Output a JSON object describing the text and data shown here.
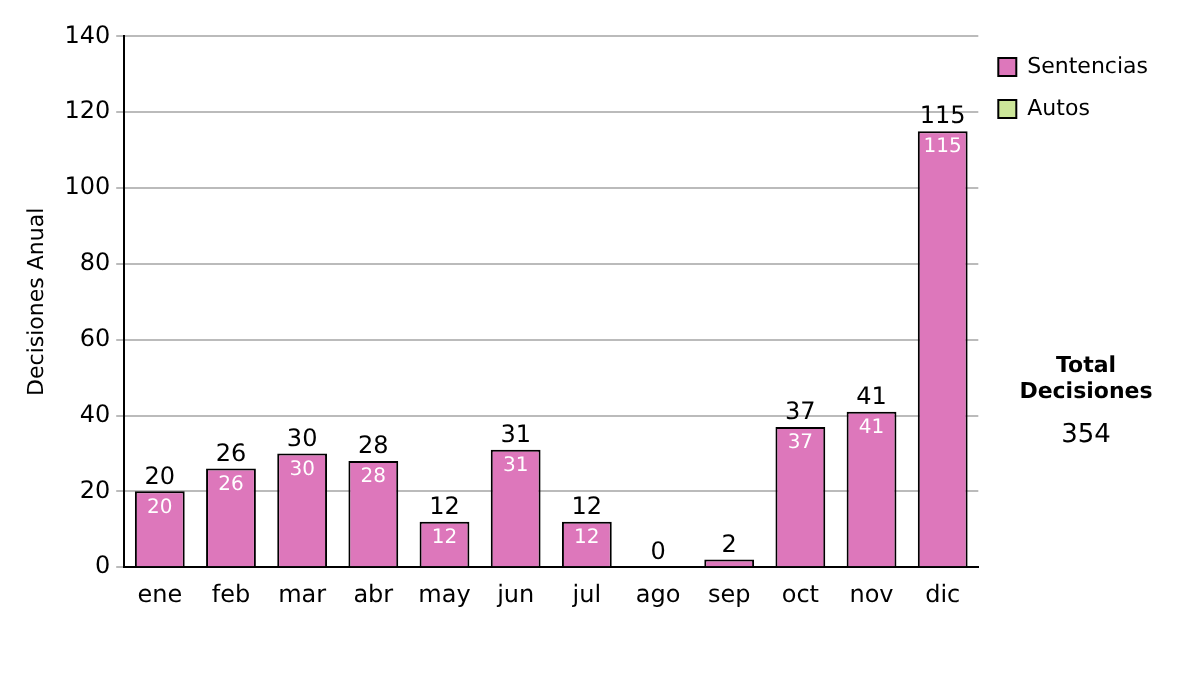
{
  "chart_data": {
    "type": "bar",
    "ylabel": "Decisiones Anual",
    "categories": [
      "ene",
      "feb",
      "mar",
      "abr",
      "may",
      "jun",
      "jul",
      "ago",
      "sep",
      "oct",
      "nov",
      "dic"
    ],
    "stacked": true,
    "series": [
      {
        "name": "Sentencias",
        "color": "#dd77bb",
        "values": [
          20,
          26,
          30,
          28,
          12,
          31,
          12,
          0,
          2,
          37,
          41,
          115
        ],
        "value_labels": [
          "20",
          "26",
          "30",
          "28",
          "12",
          "31",
          "12",
          null,
          null,
          "37",
          "41",
          "115"
        ]
      },
      {
        "name": "Autos",
        "color": "#cce699",
        "values": [
          0,
          0,
          0,
          0,
          0,
          0,
          0,
          0,
          0,
          0,
          0,
          0
        ]
      }
    ],
    "totals": [
      "20",
      "26",
      "30",
      "28",
      "12",
      "31",
      "12",
      "0",
      "2",
      "37",
      "41",
      "115"
    ],
    "ylim": [
      0,
      140
    ],
    "yticks": [
      0,
      20,
      40,
      60,
      80,
      100,
      120,
      140
    ],
    "grid": "y",
    "legend": "right",
    "annotations": [
      "Total Decisiones",
      "354"
    ]
  }
}
